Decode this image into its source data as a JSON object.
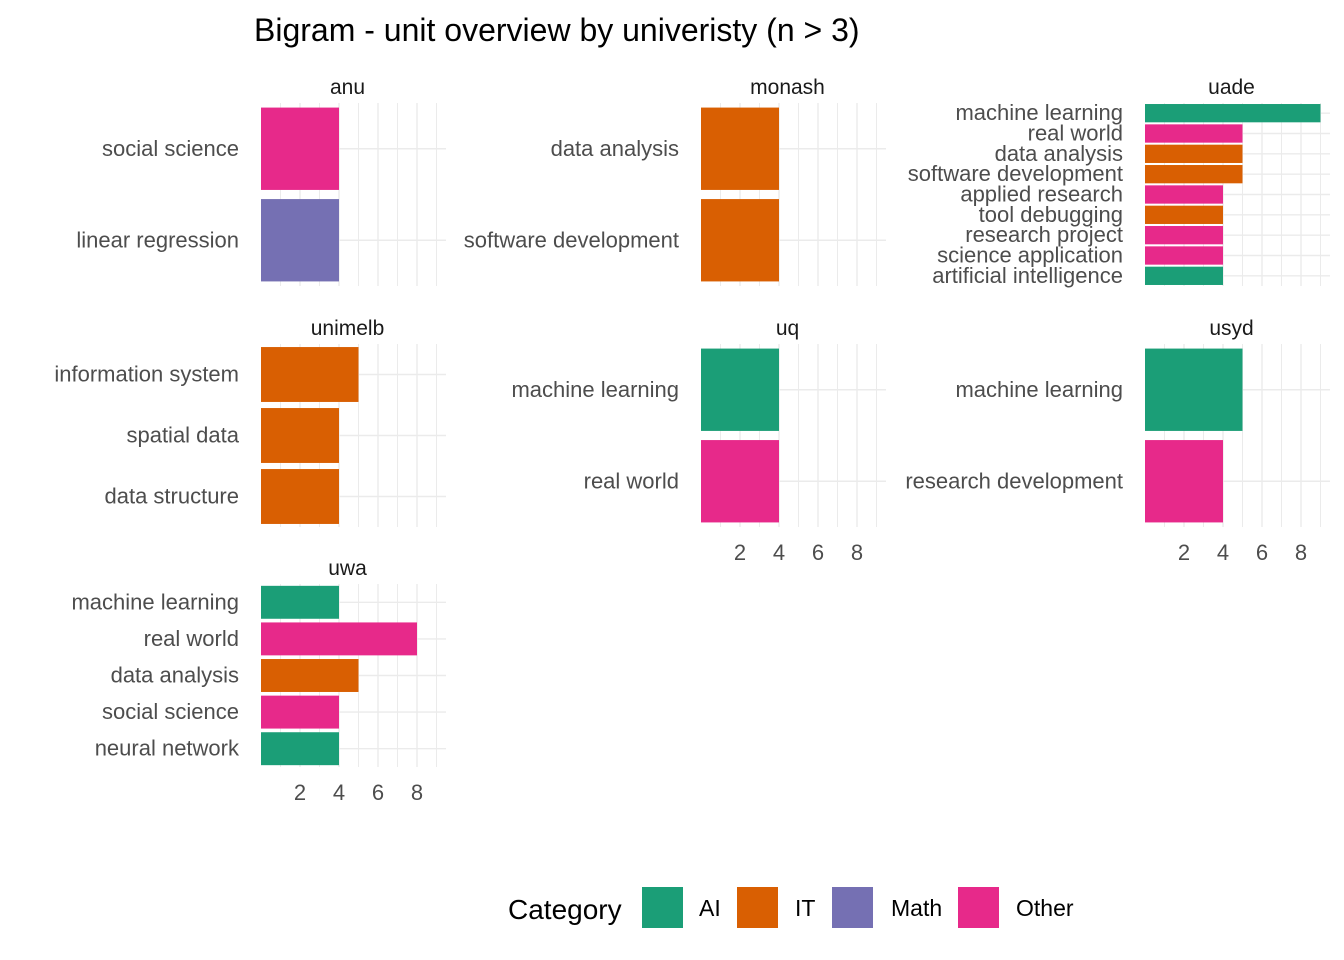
{
  "chart_data": {
    "type": "bar",
    "orientation": "horizontal",
    "title": "Bigram - unit overview by univeristy (n > 3)",
    "xlabel": "",
    "ylabel": "",
    "x_ticks": [
      2,
      4,
      6,
      8
    ],
    "xlim": [
      0,
      9.5
    ],
    "legend_position": "bottom",
    "legend": {
      "title": "Category",
      "items": [
        {
          "label": "AI",
          "color": "#1b9e77"
        },
        {
          "label": "IT",
          "color": "#d95f02"
        },
        {
          "label": "Math",
          "color": "#7570b3"
        },
        {
          "label": "Other",
          "color": "#e7298a"
        }
      ]
    },
    "facets": [
      {
        "name": "anu",
        "bars": [
          {
            "label": "social science",
            "value": 4,
            "category": "Other"
          },
          {
            "label": "linear regression",
            "value": 4,
            "category": "Math"
          }
        ]
      },
      {
        "name": "monash",
        "bars": [
          {
            "label": "data analysis",
            "value": 4,
            "category": "IT"
          },
          {
            "label": "software development",
            "value": 4,
            "category": "IT"
          }
        ]
      },
      {
        "name": "uade",
        "bars": [
          {
            "label": "machine learning",
            "value": 9,
            "category": "AI"
          },
          {
            "label": "real world",
            "value": 5,
            "category": "Other"
          },
          {
            "label": "data analysis",
            "value": 5,
            "category": "IT"
          },
          {
            "label": "software development",
            "value": 5,
            "category": "IT"
          },
          {
            "label": "applied research",
            "value": 4,
            "category": "Other"
          },
          {
            "label": "tool debugging",
            "value": 4,
            "category": "IT"
          },
          {
            "label": "research project",
            "value": 4,
            "category": "Other"
          },
          {
            "label": "science application",
            "value": 4,
            "category": "Other"
          },
          {
            "label": "artificial intelligence",
            "value": 4,
            "category": "AI"
          }
        ]
      },
      {
        "name": "unimelb",
        "bars": [
          {
            "label": "information system",
            "value": 5,
            "category": "IT"
          },
          {
            "label": "spatial data",
            "value": 4,
            "category": "IT"
          },
          {
            "label": "data structure",
            "value": 4,
            "category": "IT"
          }
        ]
      },
      {
        "name": "uq",
        "bars": [
          {
            "label": "machine learning",
            "value": 4,
            "category": "AI"
          },
          {
            "label": "real world",
            "value": 4,
            "category": "Other"
          }
        ]
      },
      {
        "name": "usyd",
        "bars": [
          {
            "label": "machine learning",
            "value": 5,
            "category": "AI"
          },
          {
            "label": "research development",
            "value": 4,
            "category": "Other"
          }
        ]
      },
      {
        "name": "uwa",
        "bars": [
          {
            "label": "machine learning",
            "value": 4,
            "category": "AI"
          },
          {
            "label": "real world",
            "value": 8,
            "category": "Other"
          },
          {
            "label": "data analysis",
            "value": 5,
            "category": "IT"
          },
          {
            "label": "social science",
            "value": 4,
            "category": "Other"
          },
          {
            "label": "neural network",
            "value": 4,
            "category": "AI"
          }
        ]
      }
    ]
  }
}
